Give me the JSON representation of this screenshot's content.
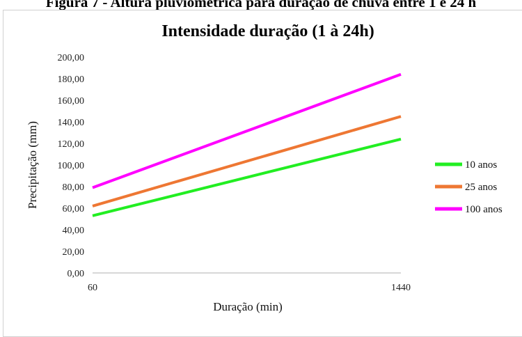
{
  "caption": "Figura 7 - Altura pluviométrica para duração de chuva entre 1 e 24 h",
  "chart_data": {
    "type": "line",
    "title": "Intensidade duração (1 à 24h)",
    "xlabel": "Duração (min)",
    "ylabel": "Precipitação (mm)",
    "x": [
      60,
      1440
    ],
    "x_tick_labels": [
      "60",
      "1440"
    ],
    "ylim": [
      0,
      200
    ],
    "y_tick_labels": [
      "0,00",
      "20,00",
      "40,00",
      "60,00",
      "80,00",
      "100,00",
      "120,00",
      "140,00",
      "160,00",
      "180,00",
      "200,00"
    ],
    "grid": false,
    "legend_position": "right",
    "series": [
      {
        "name": "10 anos",
        "color": "#22ee22",
        "values": [
          53,
          124
        ]
      },
      {
        "name": "25 anos",
        "color": "#ee7733",
        "values": [
          62,
          145
        ]
      },
      {
        "name": "100 anos",
        "color": "#ff00ff",
        "values": [
          79,
          184
        ]
      }
    ]
  }
}
